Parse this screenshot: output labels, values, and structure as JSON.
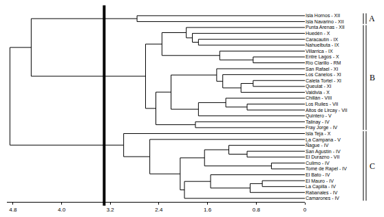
{
  "chart_data": {
    "type": "dendrogram",
    "xlim": [
      4.9,
      0
    ],
    "xticks": [
      4.8,
      {
        "value": 4,
        "label": "4.0"
      },
      3.2,
      2.4,
      1.6,
      0.8,
      0
    ],
    "cut": 3.3,
    "tree": {
      "height": 4.85,
      "children": [
        {
          "height": 4.5,
          "children": [
            {
              "height": 2.76,
              "children": [
                "Isla Hornos - XII",
                "Isla Navarino - XII"
              ]
            },
            {
              "height": 2.62,
              "children": [
                {
                  "height": 2.35,
                  "children": [
                    {
                      "height": 1.95,
                      "children": [
                        "Punta Arenas - XII",
                        {
                          "height": 1.85,
                          "children": [
                            "Huedén - X",
                            {
                              "height": 1.75,
                              "children": [
                                "Caracautín - IX",
                                "Nahuelbuta - IX"
                              ]
                            }
                          ]
                        }
                      ]
                    },
                    {
                      "height": 1.4,
                      "children": [
                        "Villarrica - IX",
                        {
                          "height": 0.85,
                          "children": [
                            "Entre Lagos - X",
                            "Río Clarillo - RM"
                          ]
                        }
                      ]
                    }
                  ]
                },
                {
                  "height": 2.45,
                  "children": [
                    {
                      "height": 2.2,
                      "children": [
                        {
                          "height": 1.45,
                          "children": [
                            "San Rafael - XI",
                            {
                              "height": 1.35,
                              "children": [
                                "Los Canelos - XI",
                                {
                                  "height": 1.05,
                                  "children": [
                                    {
                                      "height": 0.85,
                                      "children": [
                                        "Caleta Tortel - XI",
                                        "Queulat - XI"
                                      ]
                                    },
                                    "Valdivia - X"
                                  ]
                                }
                              ]
                            }
                          ]
                        },
                        {
                          "height": 1.75,
                          "children": [
                            {
                              "height": 1.3,
                              "children": [
                                "Chillán - VIII",
                                {
                                  "height": 0.95,
                                  "children": [
                                    "Los Ruiles - VII",
                                    "Altos de Lircay - VII"
                                  ]
                                }
                              ]
                            },
                            "Quintero - V"
                          ]
                        }
                      ]
                    },
                    {
                      "height": 1.8,
                      "children": [
                        "Talinay - IV",
                        "Fray Jorge - IV"
                      ]
                    }
                  ]
                }
              ]
            }
          ]
        },
        {
          "height": 2.98,
          "children": [
            "Isla Teja - X",
            {
              "height": 2.55,
              "children": [
                "La Campana - V",
                {
                  "height": 2.05,
                  "children": [
                    {
                      "height": 1.65,
                      "children": [
                        {
                          "height": 1.25,
                          "children": [
                            "Ñague - IV",
                            {
                              "height": 0.95,
                              "children": [
                                "San Agustín - IV",
                                "El Durazno - VII"
                              ]
                            }
                          ]
                        },
                        {
                          "height": 0.55,
                          "children": [
                            "Culimo - IV",
                            "Tomé de Rapel - IV"
                          ]
                        }
                      ]
                    },
                    {
                      "height": 1.98,
                      "children": [
                        {
                          "height": 1.55,
                          "children": [
                            "El Bato - IV",
                            {
                              "height": 0.9,
                              "children": [
                                {
                                  "height": 0.7,
                                  "children": [
                                    "El Mauro - IV",
                                    "La Capilla - IV"
                                  ]
                                },
                                "Rabanales - IV"
                              ]
                            }
                          ]
                        },
                        "Camarones - IV"
                      ]
                    }
                  ]
                }
              ]
            }
          ]
        }
      ]
    },
    "groups": [
      {
        "label": "A",
        "from": "Isla Hornos - XII",
        "to": "Isla Navarino - XII"
      },
      {
        "label": "B",
        "from": "Punta Arenas - XII",
        "to": "Fray Jorge - IV"
      },
      {
        "label": "C",
        "from": "Isla Teja - X",
        "to": "Camarones - IV"
      }
    ]
  }
}
